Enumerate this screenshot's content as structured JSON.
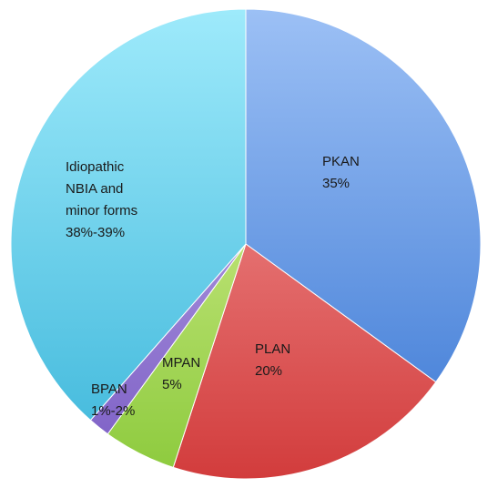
{
  "chart_data": {
    "type": "pie",
    "title": "",
    "slices": [
      {
        "label": "PKAN",
        "value_text": "35%",
        "value": 35,
        "color_top": "#9cc0f5",
        "color_bottom": "#3b78d4"
      },
      {
        "label": "PLAN",
        "value_text": "20%",
        "value": 20,
        "color_top": "#f7a3a3",
        "color_bottom": "#d23c3c"
      },
      {
        "label": "MPAN",
        "value_text": "5%",
        "value": 5,
        "color_top": "#e6f7a6",
        "color_bottom": "#8cca3c"
      },
      {
        "label": "BPAN",
        "value_text": "1%-2%",
        "value": 1.5,
        "color_top": "#c9b8ee",
        "color_bottom": "#7a5cc4"
      },
      {
        "label": "Idiopathic NBIA and minor forms",
        "value_text": "38%-39%",
        "value": 38.5,
        "color_top": "#9eeafb",
        "color_bottom": "#3cb6da"
      }
    ],
    "label_lines": [
      [
        "PKAN",
        "35%"
      ],
      [
        "PLAN",
        "20%"
      ],
      [
        "MPAN",
        "5%"
      ],
      [
        "BPAN",
        "1%-2%"
      ],
      [
        "Idiopathic",
        "NBIA and",
        "minor forms",
        "38%-39%"
      ]
    ],
    "start_angle": "12 o'clock",
    "direction": "clockwise",
    "legend": "none"
  }
}
